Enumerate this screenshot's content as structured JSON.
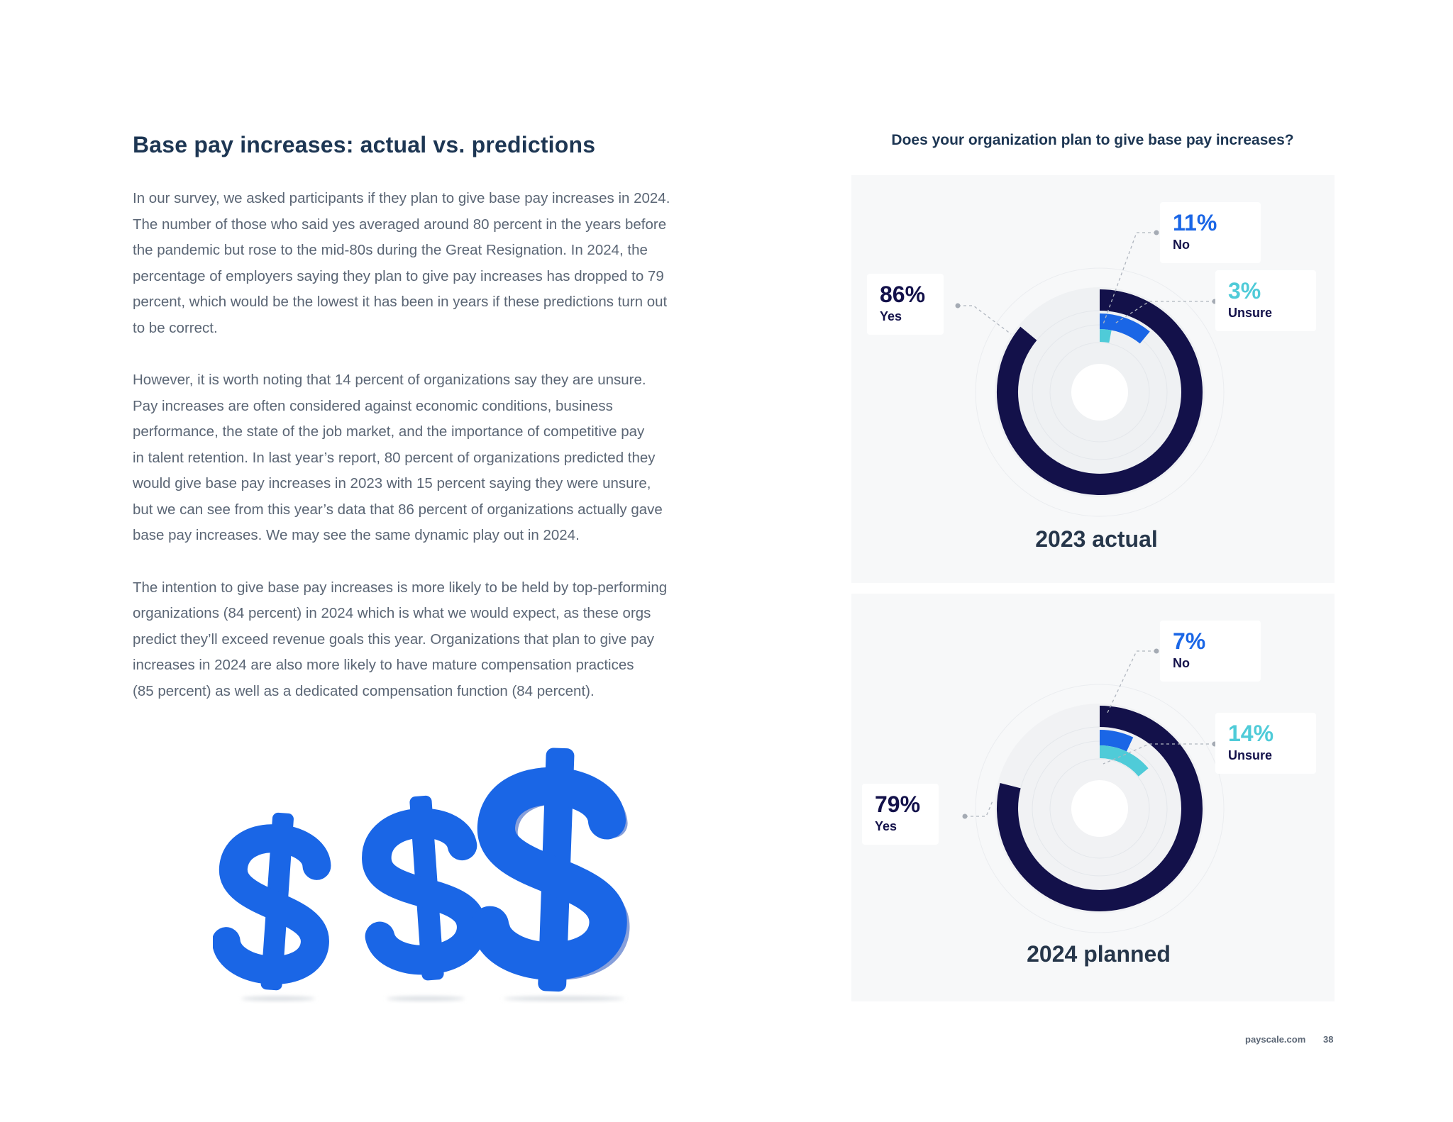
{
  "heading": "Base pay increases: actual vs. predictions",
  "paragraphs": [
    {
      "lines": [
        "In our survey, we asked participants if they plan to give base pay increases in 2024.",
        "The number of those who said yes averaged around 80 percent in the years before",
        "the pandemic but rose to the mid-80s during the Great Resignation. In 2024, the",
        "percentage of employers saying they plan to give pay increases has dropped to 79",
        "percent, which would be the lowest it has been in years if these predictions turn out",
        "to be correct."
      ]
    },
    {
      "lines": [
        "However, it is worth noting that 14 percent of organizations say they are unsure.",
        "Pay increases are often considered against economic conditions, business",
        "performance, the state of the job market, and the importance of competitive pay",
        "in talent retention. In last year’s report, 80 percent of organizations predicted they",
        "would give base pay increases in 2023 with 15 percent saying they were unsure,",
        "but we can see from this year’s data that 86 percent of organizations actually gave",
        "base pay increases. We may see the same dynamic play out in 2024."
      ]
    },
    {
      "lines": [
        "The intention to give base pay increases is more likely to be held by top-performing",
        "organizations (84 percent) in 2024 which is what we would expect, as these orgs",
        "predict they’ll exceed revenue goals this year. Organizations that plan to give pay",
        "increases in 2024 are also more likely to have mature compensation practices",
        "(85 percent) as well as a dedicated compensation function (84 percent)."
      ]
    }
  ],
  "illustration": {
    "icon": "three-dollar-signs",
    "color": "#1a66e6"
  },
  "chart_question": "Does your organization plan to give base pay increases?",
  "chart_data": [
    {
      "type": "pie",
      "title": "2023 actual",
      "series": [
        {
          "name": "Yes",
          "value": 86,
          "display": "86%",
          "color": "#13114a"
        },
        {
          "name": "No",
          "value": 11,
          "display": "11%",
          "color": "#1a66e6"
        },
        {
          "name": "Unsure",
          "value": 3,
          "display": "3%",
          "color": "#4fcbd8"
        }
      ]
    },
    {
      "type": "pie",
      "title": "2024 planned",
      "series": [
        {
          "name": "Yes",
          "value": 79,
          "display": "79%",
          "color": "#13114a"
        },
        {
          "name": "No",
          "value": 7,
          "display": "7%",
          "color": "#1a66e6"
        },
        {
          "name": "Unsure",
          "value": 14,
          "display": "14%",
          "color": "#4fcbd8"
        }
      ]
    }
  ],
  "footer": {
    "site": "payscale.com",
    "page": "38"
  }
}
